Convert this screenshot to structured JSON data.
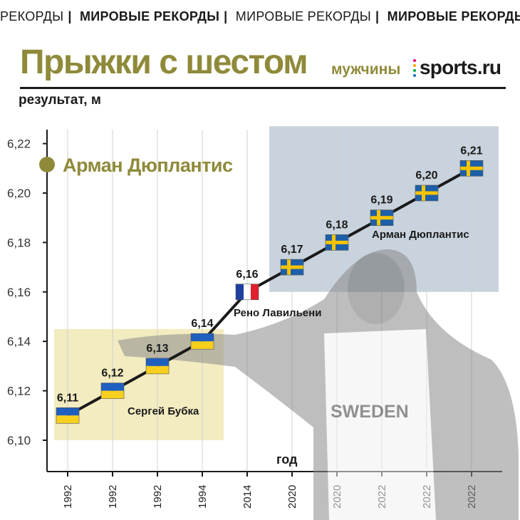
{
  "ticker": [
    "РЕКОРДЫ",
    "МИРОВЫЕ РЕКОРДЫ",
    "МИРОВЫЕ РЕКОРДЫ",
    "МИРОВЫЕ РЕКОРДЫ"
  ],
  "header": {
    "title": "Прыжки с шестом",
    "subtitle": "мужчины",
    "logo_text": "sports.ru",
    "logo_dot_colors": [
      "#e6007e",
      "#f7a800",
      "#00a651",
      "#1d71b8"
    ]
  },
  "legend": {
    "label": "Арман Дюплантис",
    "marker_color": "#8f8a3a",
    "placement": "top-left"
  },
  "colors": {
    "title": "#8f8a3a",
    "bubka_zone": "#f2ecc0",
    "duplantis_zone": "#c9d3dd",
    "line": "#1a1a1a"
  },
  "chart_data": {
    "type": "line",
    "ylabel": "результат, м",
    "xlabel": "год",
    "ylim": [
      6.09,
      6.23
    ],
    "yticks": [
      "6,10",
      "6,12",
      "6,14",
      "6,16",
      "6,18",
      "6,20",
      "6,22"
    ],
    "x": [
      "1992",
      "1992",
      "1992",
      "1994",
      "2014",
      "2020",
      "2020",
      "2022",
      "2022",
      "2022"
    ],
    "values": [
      6.11,
      6.12,
      6.13,
      6.14,
      6.16,
      6.17,
      6.18,
      6.19,
      6.2,
      6.21
    ],
    "labels": [
      "6,11",
      "6,12",
      "6,13",
      "6,14",
      "6,16",
      "6,17",
      "6,18",
      "6,19",
      "6,20",
      "6,21"
    ],
    "flags": [
      "ukraine",
      "ukraine",
      "ukraine",
      "ukraine",
      "france",
      "sweden",
      "sweden",
      "sweden",
      "sweden",
      "sweden"
    ],
    "annotations": [
      "Сергей Бубка",
      "Рено Лавильени",
      "Арман Дюплантис"
    ],
    "grid": true
  }
}
